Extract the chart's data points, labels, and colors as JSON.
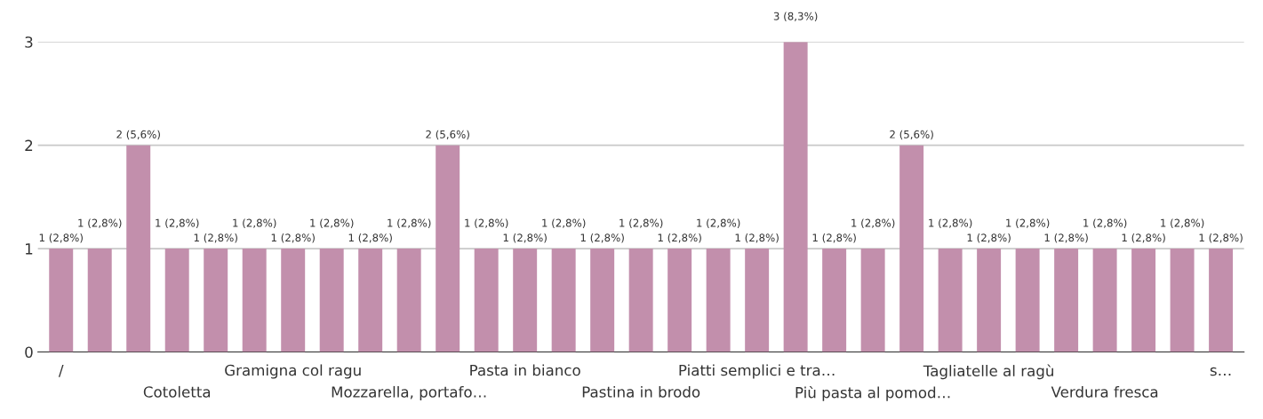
{
  "chart_data": {
    "type": "bar",
    "categories": [
      "/",
      null,
      null,
      "Cotoletta",
      null,
      null,
      "Gramigna col ragu",
      null,
      null,
      "Mozzarella, portafo…",
      null,
      null,
      "Pasta in bianco",
      null,
      null,
      "Pastina in brodo",
      null,
      null,
      "Piatti semplici e tra…",
      null,
      null,
      "Più pasta al pomod…",
      null,
      null,
      "Tagliatelle al ragù",
      null,
      null,
      "Verdura fresca",
      null,
      null,
      "s…"
    ],
    "values": [
      1,
      1,
      2,
      1,
      1,
      1,
      1,
      1,
      1,
      1,
      2,
      1,
      1,
      1,
      1,
      1,
      1,
      1,
      1,
      3,
      1,
      1,
      2,
      1,
      1,
      1,
      1,
      1,
      1,
      1,
      1
    ],
    "value_labels": [
      "1 (2,8%)",
      "1 (2,8%)",
      "2 (5,6%)",
      "1 (2,8%)",
      "1 (2,8%)",
      "1 (2,8%)",
      "1 (2,8%)",
      "1 (2,8%)",
      "1 (2,8%)",
      "1 (2,8%)",
      "2 (5,6%)",
      "1 (2,8%)",
      "1 (2,8%)",
      "1 (2,8%)",
      "1 (2,8%)",
      "1 (2,8%)",
      "1 (2,8%)",
      "1 (2,8%)",
      "1 (2,8%)",
      "3 (8,3%)",
      "1 (2,8%)",
      "1 (2,8%)",
      "2 (5,6%)",
      "1 (2,8%)",
      "1 (2,8%)",
      "1 (2,8%)",
      "1 (2,8%)",
      "1 (2,8%)",
      "1 (2,8%)",
      "1 (2,8%)",
      "1 (2,8%)"
    ],
    "color": "#c28fac",
    "ylim": [
      0,
      3
    ],
    "yticks": [
      0,
      1,
      2,
      3
    ],
    "grid": "y"
  }
}
